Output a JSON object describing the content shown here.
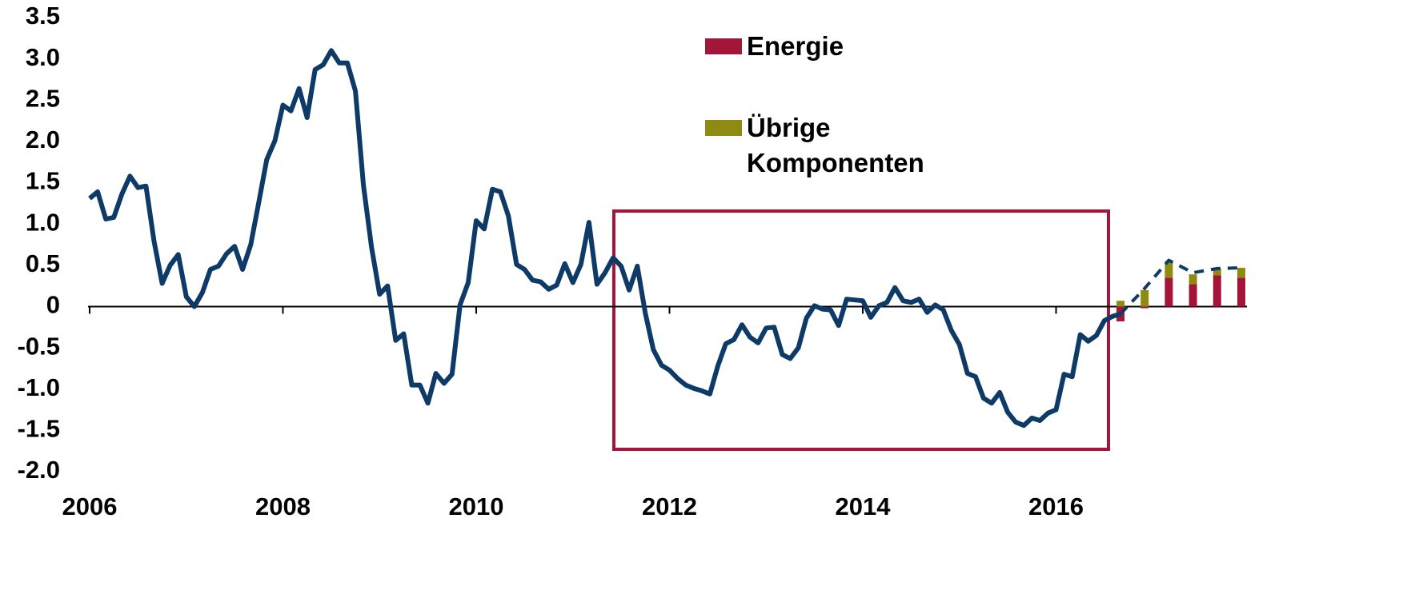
{
  "chart_data": {
    "type": "line",
    "xlim": [
      2006,
      2018
    ],
    "xticks": [
      2006,
      2008,
      2010,
      2012,
      2014,
      2016
    ],
    "ylim": [
      -2,
      3.5
    ],
    "yticks": [
      3.5,
      {
        "value": 3,
        "label": "3.0"
      },
      2.5,
      {
        "value": 2,
        "label": "2.0"
      },
      1.5,
      {
        "value": 1,
        "label": "1.0"
      },
      0.5,
      0,
      -0.5,
      {
        "value": -1,
        "label": "-1.0"
      },
      -1.5,
      {
        "value": -2,
        "label": "-2.0"
      }
    ],
    "grid": false,
    "line_series": [
      {
        "color": "#0e3a68",
        "dashed": false,
        "x": [
          2006,
          2006.083,
          2006.167,
          2006.25,
          2006.333,
          2006.417,
          2006.5,
          2006.583,
          2006.667,
          2006.75,
          2006.833,
          2006.917,
          2007,
          2007.083,
          2007.167,
          2007.25,
          2007.333,
          2007.417,
          2007.5,
          2007.583,
          2007.667,
          2007.75,
          2007.833,
          2007.917,
          2008,
          2008.083,
          2008.167,
          2008.25,
          2008.333,
          2008.417,
          2008.5,
          2008.583,
          2008.667,
          2008.75,
          2008.833,
          2008.917,
          2009,
          2009.083,
          2009.167,
          2009.25,
          2009.333,
          2009.417,
          2009.5,
          2009.583,
          2009.667,
          2009.75,
          2009.833,
          2009.917,
          2010,
          2010.083,
          2010.167,
          2010.25,
          2010.333,
          2010.417,
          2010.5,
          2010.583,
          2010.667,
          2010.75,
          2010.833,
          2010.917,
          2011,
          2011.083,
          2011.167,
          2011.25,
          2011.333,
          2011.417,
          2011.5,
          2011.583,
          2011.667,
          2011.75,
          2011.833,
          2011.917,
          2012,
          2012.083,
          2012.167,
          2012.25,
          2012.333,
          2012.417,
          2012.5,
          2012.583,
          2012.667,
          2012.75,
          2012.833,
          2012.917,
          2013,
          2013.083,
          2013.167,
          2013.25,
          2013.333,
          2013.417,
          2013.5,
          2013.583,
          2013.667,
          2013.75,
          2013.833,
          2013.917,
          2014,
          2014.083,
          2014.167,
          2014.25,
          2014.333,
          2014.417,
          2014.5,
          2014.583,
          2014.667,
          2014.75,
          2014.833,
          2014.917,
          2015,
          2015.083,
          2015.167,
          2015.25,
          2015.333,
          2015.417,
          2015.5,
          2015.583,
          2015.667,
          2015.75,
          2015.833,
          2015.917,
          2016,
          2016.083,
          2016.167,
          2016.25,
          2016.333,
          2016.417,
          2016.5,
          2016.583,
          2016.667
        ],
        "values": [
          1.31,
          1.39,
          1.06,
          1.08,
          1.36,
          1.58,
          1.44,
          1.46,
          0.79,
          0.28,
          0.5,
          0.63,
          0.12,
          0,
          0.17,
          0.45,
          0.49,
          0.64,
          0.73,
          0.45,
          0.75,
          1.26,
          1.78,
          2.01,
          2.44,
          2.37,
          2.64,
          2.29,
          2.87,
          2.93,
          3.1,
          2.95,
          2.95,
          2.61,
          1.47,
          0.72,
          0.15,
          0.25,
          -0.41,
          -0.33,
          -0.95,
          -0.95,
          -1.17,
          -0.81,
          -0.93,
          -0.82,
          0.02,
          0.29,
          1.04,
          0.94,
          1.42,
          1.39,
          1.1,
          0.51,
          0.45,
          0.32,
          0.3,
          0.21,
          0.26,
          0.52,
          0.29,
          0.51,
          1.02,
          0.27,
          0.41,
          0.59,
          0.49,
          0.2,
          0.49,
          -0.08,
          -0.52,
          -0.71,
          -0.77,
          -0.87,
          -0.95,
          -0.99,
          -1.02,
          -1.06,
          -0.72,
          -0.45,
          -0.4,
          -0.22,
          -0.37,
          -0.44,
          -0.26,
          -0.25,
          -0.58,
          -0.63,
          -0.5,
          -0.14,
          0.01,
          -0.03,
          -0.04,
          -0.23,
          0.09,
          0.08,
          0.07,
          -0.13,
          0.01,
          0.05,
          0.23,
          0.07,
          0.05,
          0.09,
          -0.07,
          0.02,
          -0.04,
          -0.29,
          -0.46,
          -0.81,
          -0.85,
          -1.11,
          -1.17,
          -1.04,
          -1.28,
          -1.4,
          -1.44,
          -1.35,
          -1.38,
          -1.29,
          -1.25,
          -0.82,
          -0.85,
          -0.34,
          -0.42,
          -0.35,
          -0.17,
          -0.12,
          -0.09
        ]
      },
      {
        "color": "#0e3a68",
        "dashed": true,
        "x": [
          2016.667,
          2016.917,
          2017.167,
          2017.417,
          2017.667,
          2017.917
        ],
        "values": [
          -0.09,
          0.22,
          0.56,
          0.41,
          0.46,
          0.47
        ]
      }
    ],
    "bar_x": [
      2016.667,
      2016.917,
      2017.167,
      2017.417,
      2017.667,
      2017.917
    ],
    "series": [
      {
        "name": "Energie",
        "color": "#a3163a",
        "values": [
          -0.18,
          -0.02,
          0.35,
          0.27,
          0.38,
          0.35
        ]
      },
      {
        "name": "Übrige Komponenten",
        "color": "#8f8a12",
        "values": [
          0.07,
          0.2,
          0.2,
          0.12,
          0.08,
          0.12
        ]
      }
    ]
  }
}
